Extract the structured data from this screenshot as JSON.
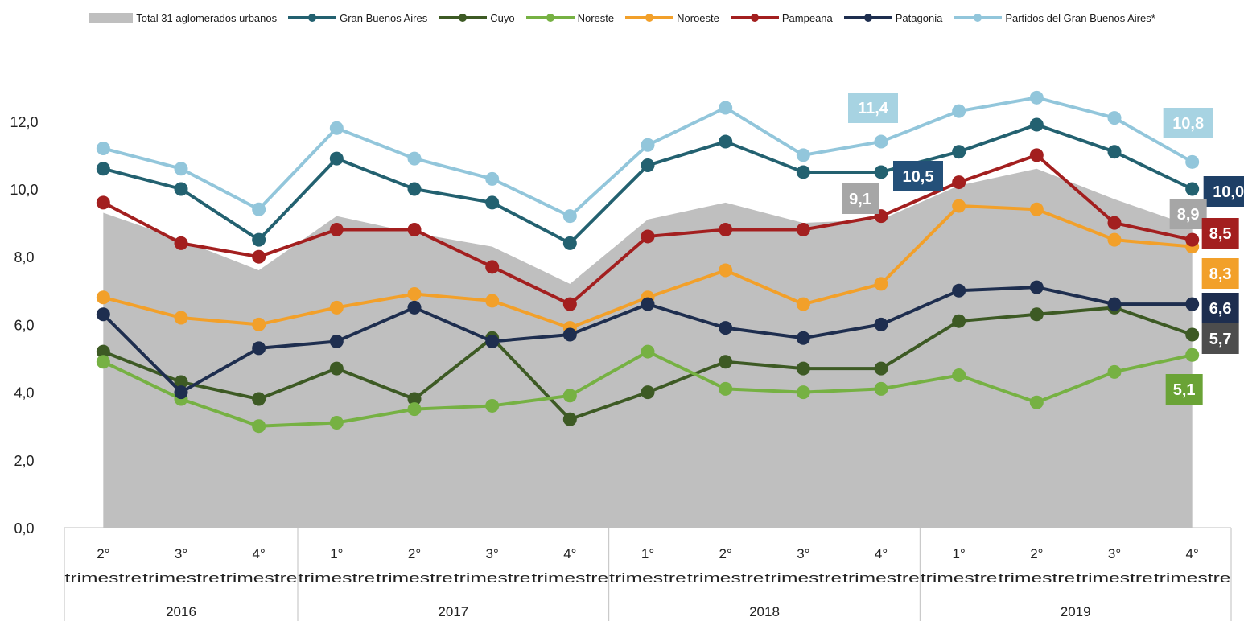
{
  "chart_data": {
    "type": "line",
    "ylim": [
      0,
      12
    ],
    "yticks": [
      "0,0",
      "2,0",
      "4,0",
      "6,0",
      "8,0",
      "10,0",
      "12,0"
    ],
    "grid": false,
    "legend_position": "top",
    "quarters": [
      "2° trimestre",
      "3° trimestre",
      "4° trimestre",
      "1° trimestre",
      "2° trimestre",
      "3° trimestre",
      "4° trimestre",
      "1° trimestre",
      "2° trimestre",
      "3° trimestre",
      "4° trimestre",
      "1° trimestre",
      "2° trimestre",
      "3° trimestre",
      "4° trimestre"
    ],
    "years": [
      {
        "label": "2016",
        "span": 3
      },
      {
        "label": "2017",
        "span": 4
      },
      {
        "label": "2018",
        "span": 4
      },
      {
        "label": "2019",
        "span": 4
      }
    ],
    "area": {
      "name": "Total 31 aglomerados urbanos",
      "color": "#bfbfbf",
      "values": [
        9.3,
        8.5,
        7.6,
        9.2,
        8.7,
        8.3,
        7.2,
        9.1,
        9.6,
        9.0,
        9.1,
        10.1,
        10.6,
        9.7,
        8.9
      ]
    },
    "series": [
      {
        "name": "Gran Buenos Aires",
        "color": "#236170",
        "values": [
          10.6,
          10.0,
          8.5,
          10.9,
          10.0,
          9.6,
          8.4,
          10.7,
          11.4,
          10.5,
          10.5,
          11.1,
          11.9,
          11.1,
          10.0
        ]
      },
      {
        "name": "Cuyo",
        "color": "#3d5a24",
        "values": [
          5.2,
          4.3,
          3.8,
          4.7,
          3.8,
          5.6,
          3.2,
          4.0,
          4.9,
          4.7,
          4.7,
          6.1,
          6.3,
          6.5,
          5.7
        ]
      },
      {
        "name": "Noreste",
        "color": "#76b143",
        "values": [
          4.9,
          3.8,
          3.0,
          3.1,
          3.5,
          3.6,
          3.9,
          5.2,
          4.1,
          4.0,
          4.1,
          4.5,
          3.7,
          4.6,
          5.1
        ]
      },
      {
        "name": "Noroeste",
        "color": "#f2a02a",
        "values": [
          6.8,
          6.2,
          6.0,
          6.5,
          6.9,
          6.7,
          5.9,
          6.8,
          7.6,
          6.6,
          7.2,
          9.5,
          9.4,
          8.5,
          8.3
        ]
      },
      {
        "name": "Pampeana",
        "color": "#a31f1f",
        "values": [
          9.6,
          8.4,
          8.0,
          8.8,
          8.8,
          7.7,
          6.6,
          8.6,
          8.8,
          8.8,
          9.2,
          10.2,
          11.0,
          9.0,
          8.5
        ]
      },
      {
        "name": "Patagonia",
        "color": "#1e2e4f",
        "values": [
          6.3,
          4.0,
          5.3,
          5.5,
          6.5,
          5.5,
          5.7,
          6.6,
          5.9,
          5.6,
          6.0,
          7.0,
          7.1,
          6.6,
          6.6
        ]
      },
      {
        "name": "Partidos del Gran Buenos Aires*",
        "color": "#92c6db",
        "values": [
          11.2,
          10.6,
          9.4,
          11.8,
          10.9,
          10.3,
          9.2,
          11.3,
          12.4,
          11.0,
          11.4,
          12.3,
          12.7,
          12.1,
          10.8
        ]
      }
    ],
    "annotations": [
      {
        "text": "11,4",
        "bg": "#a7d3e2",
        "fg": "#ffffff",
        "index": 10,
        "value": 11.4
      },
      {
        "text": "10,8",
        "bg": "#a7d3e2",
        "fg": "#ffffff",
        "index": 14,
        "value": 10.8
      },
      {
        "text": "10,5",
        "bg": "#245079",
        "fg": "#ffffff",
        "index": 10,
        "value": 10.5
      },
      {
        "text": "10,0",
        "bg": "#1e3f66",
        "fg": "#ffffff",
        "index": 14,
        "value": 10.0
      },
      {
        "text": "9,1",
        "bg": "#a6a6a6",
        "fg": "#ffffff",
        "index": 10,
        "value": 9.1
      },
      {
        "text": "8,9",
        "bg": "#a6a6a6",
        "fg": "#ffffff",
        "index": 14,
        "value": 8.9
      },
      {
        "text": "8,5",
        "bg": "#a31f1f",
        "fg": "#ffffff",
        "index": 14,
        "value": 8.5
      },
      {
        "text": "8,3",
        "bg": "#f2a02a",
        "fg": "#ffffff",
        "index": 14,
        "value": 8.3
      },
      {
        "text": "6,6",
        "bg": "#1e2e4f",
        "fg": "#ffffff",
        "index": 14,
        "value": 6.6
      },
      {
        "text": "5,7",
        "bg": "#4d4d4d",
        "fg": "#ffffff",
        "index": 14,
        "value": 5.7
      },
      {
        "text": "5,1",
        "bg": "#6aa336",
        "fg": "#ffffff",
        "index": 14,
        "value": 5.1
      }
    ]
  }
}
